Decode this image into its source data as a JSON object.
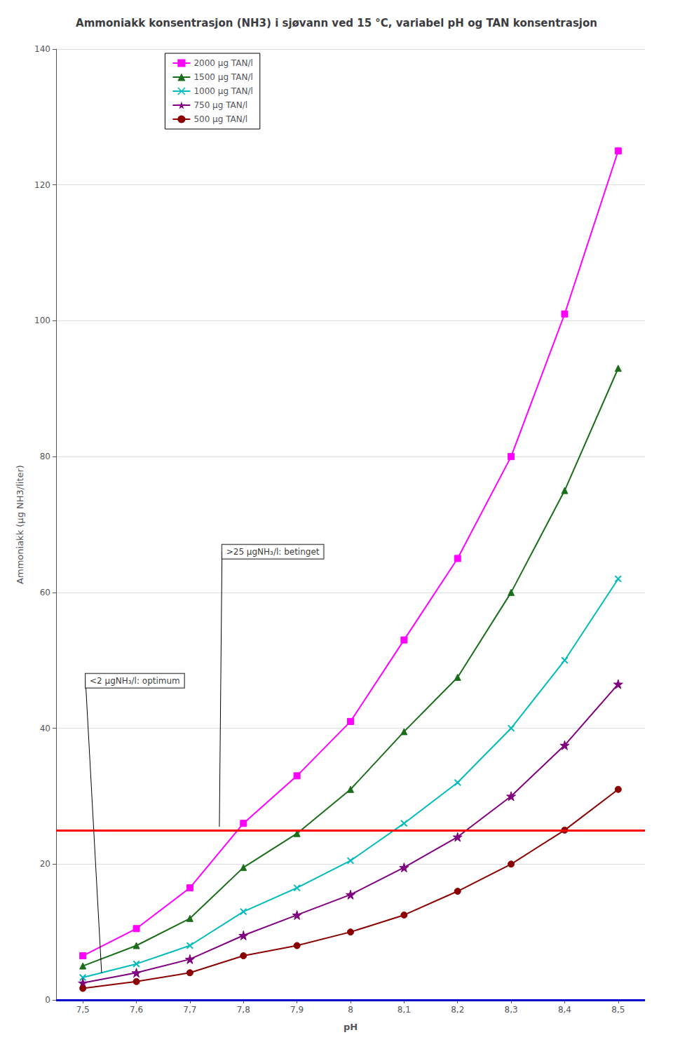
{
  "chart_data": {
    "type": "line",
    "title": "Ammoniakk konsentrasjon (NH3) i sjøvann ved 15 °C, variabel pH og TAN konsentrasjon",
    "xlabel": "pH",
    "ylabel": "Ammoniakk (µg NH3/liter)",
    "x": [
      7.5,
      7.6,
      7.7,
      7.8,
      7.9,
      8.0,
      8.1,
      8.2,
      8.3,
      8.4,
      8.5
    ],
    "xlim": [
      7.45,
      8.55
    ],
    "xticks": [
      {
        "value": 7.5,
        "label": "7,5"
      },
      {
        "value": 7.6,
        "label": "7,6"
      },
      {
        "value": 7.7,
        "label": "7,7"
      },
      {
        "value": 7.8,
        "label": "7,8"
      },
      {
        "value": 7.9,
        "label": "7,9"
      },
      8,
      {
        "value": 8.1,
        "label": "8,1"
      },
      {
        "value": 8.2,
        "label": "8,2"
      },
      {
        "value": 8.3,
        "label": "8,3"
      },
      {
        "value": 8.4,
        "label": "8,4"
      },
      {
        "value": 8.5,
        "label": "8,5"
      }
    ],
    "ylim": [
      0,
      140
    ],
    "yticks": [
      0,
      20,
      40,
      60,
      80,
      100,
      120,
      140
    ],
    "grid": true,
    "legend": "upper left",
    "series": [
      {
        "name": "2000 µg TAN/l",
        "color": "#FF00FF",
        "marker": "square",
        "values": [
          6.5,
          10.5,
          16.5,
          26.0,
          33.0,
          41.0,
          53.0,
          65.0,
          80.0,
          101.0,
          125.0
        ]
      },
      {
        "name": "1500 µg TAN/l",
        "color": "#1a6e1a",
        "marker": "triangle",
        "values": [
          5.0,
          8.0,
          12.0,
          19.5,
          24.5,
          31.0,
          39.5,
          47.5,
          60.0,
          75.0,
          93.0
        ]
      },
      {
        "name": "1000 µg TAN/l",
        "color": "#00BBBB",
        "marker": "x",
        "values": [
          3.3,
          5.3,
          8.0,
          13.0,
          16.5,
          20.5,
          26.0,
          32.0,
          40.0,
          50.0,
          62.0
        ]
      },
      {
        "name": "750 µg TAN/l",
        "color": "#800080",
        "marker": "star",
        "values": [
          2.5,
          4.0,
          6.0,
          9.5,
          12.5,
          15.5,
          19.5,
          24.0,
          30.0,
          37.5,
          46.5
        ]
      },
      {
        "name": "500 µg TAN/l",
        "color": "#8B0000",
        "marker": "circle",
        "values": [
          1.7,
          2.7,
          4.0,
          6.5,
          8.0,
          10.0,
          12.5,
          16.0,
          20.0,
          25.0,
          31.0
        ]
      }
    ],
    "hlines": [
      {
        "y": 25,
        "color": "#FF0000"
      },
      {
        "y": 0,
        "color": "#0000CD"
      }
    ],
    "annotations": [
      {
        "text": "<2 µgNH₃/l: optimum",
        "x": 7.505,
        "y": 47,
        "xy": [
          7.535,
          4.0
        ]
      },
      {
        "text": ">25 µgNH₃/l: betinget",
        "x": 7.76,
        "y": 66,
        "xy": [
          7.755,
          25.5
        ]
      }
    ]
  }
}
